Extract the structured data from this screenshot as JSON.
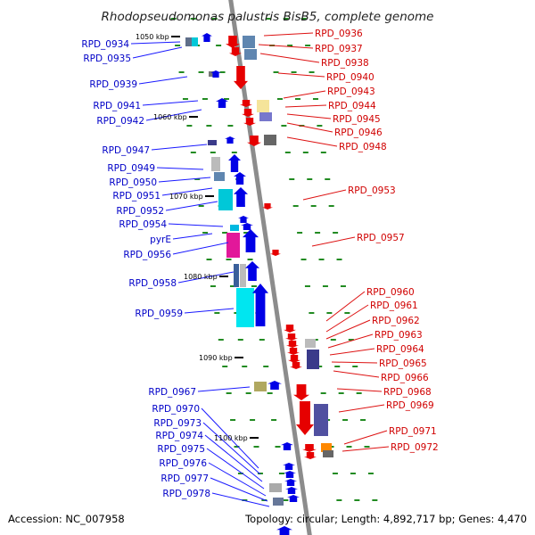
{
  "title": "Rhodopseudomonas palustris BisB5, complete genome",
  "accession": "Accession: NC_007958",
  "topology": "Topology: circular; Length: 4,892,717 bp; Genes: 4,470",
  "colors": {
    "forward": "#0000e6",
    "reverse": "#e60000",
    "axis": "#8c8c8c",
    "tick": "#228b22"
  },
  "kbp_marks": [
    "1050 kbp",
    "1060 kbp",
    "1070 kbp",
    "1080 kbp",
    "1090 kbp",
    "1100 kbp"
  ],
  "left_genes": [
    "RPD_0934",
    "RPD_0935",
    "RPD_0939",
    "RPD_0941",
    "RPD_0942",
    "RPD_0947",
    "RPD_0949",
    "RPD_0950",
    "RPD_0951",
    "RPD_0952",
    "RPD_0954",
    "pyrE",
    "RPD_0956",
    "RPD_0958",
    "RPD_0959",
    "RPD_0967",
    "RPD_0970",
    "RPD_0973",
    "RPD_0974",
    "RPD_0975",
    "RPD_0976",
    "RPD_0977",
    "RPD_0978"
  ],
  "right_genes": [
    "RPD_0936",
    "RPD_0937",
    "RPD_0938",
    "RPD_0940",
    "RPD_0943",
    "RPD_0944",
    "RPD_0945",
    "RPD_0946",
    "RPD_0948",
    "RPD_0953",
    "RPD_0957",
    "RPD_0960",
    "RPD_0961",
    "RPD_0962",
    "RPD_0963",
    "RPD_0964",
    "RPD_0965",
    "RPD_0966",
    "RPD_0968",
    "RPD_0969",
    "RPD_0971",
    "RPD_0972"
  ]
}
